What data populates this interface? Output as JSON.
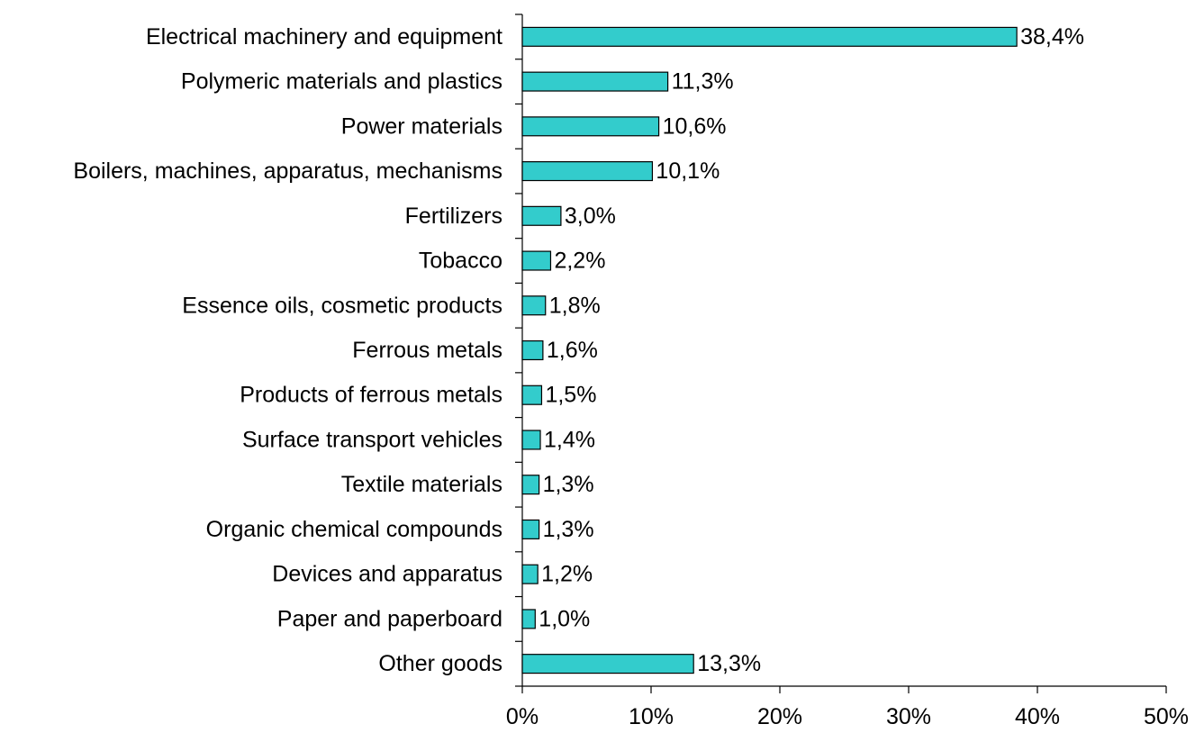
{
  "chart_data": {
    "type": "bar",
    "orientation": "horizontal",
    "title": "",
    "xlabel": "",
    "ylabel": "",
    "bar_color": "#33CCCC",
    "xlim": [
      0,
      50
    ],
    "x_ticks": [
      0,
      10,
      20,
      30,
      40,
      50
    ],
    "x_tick_labels": [
      "0%",
      "10%",
      "20%",
      "30%",
      "40%",
      "50%"
    ],
    "grid": false,
    "legend": "none",
    "categories": [
      "Electrical machinery and equipment",
      "Polymeric materials and plastics",
      "Power materials",
      "Boilers, machines, apparatus, mechanisms",
      "Fertilizers",
      "Tobacco",
      "Essence oils, cosmetic products",
      "Ferrous metals",
      "Products of ferrous metals",
      "Surface transport vehicles",
      "Textile materials",
      "Organic chemical compounds",
      "Devices and apparatus",
      "Paper and paperboard",
      "Other goods"
    ],
    "values": [
      38.4,
      11.3,
      10.6,
      10.1,
      3.0,
      2.2,
      1.8,
      1.6,
      1.5,
      1.4,
      1.3,
      1.3,
      1.2,
      1.0,
      13.3
    ],
    "data_labels": [
      "38,4%",
      "11,3%",
      "10,6%",
      "10,1%",
      "3,0%",
      "2,2%",
      "1,8%",
      "1,6%",
      "1,5%",
      "1,4%",
      "1,3%",
      "1,3%",
      "1,2%",
      "1,0%",
      "13,3%"
    ]
  }
}
